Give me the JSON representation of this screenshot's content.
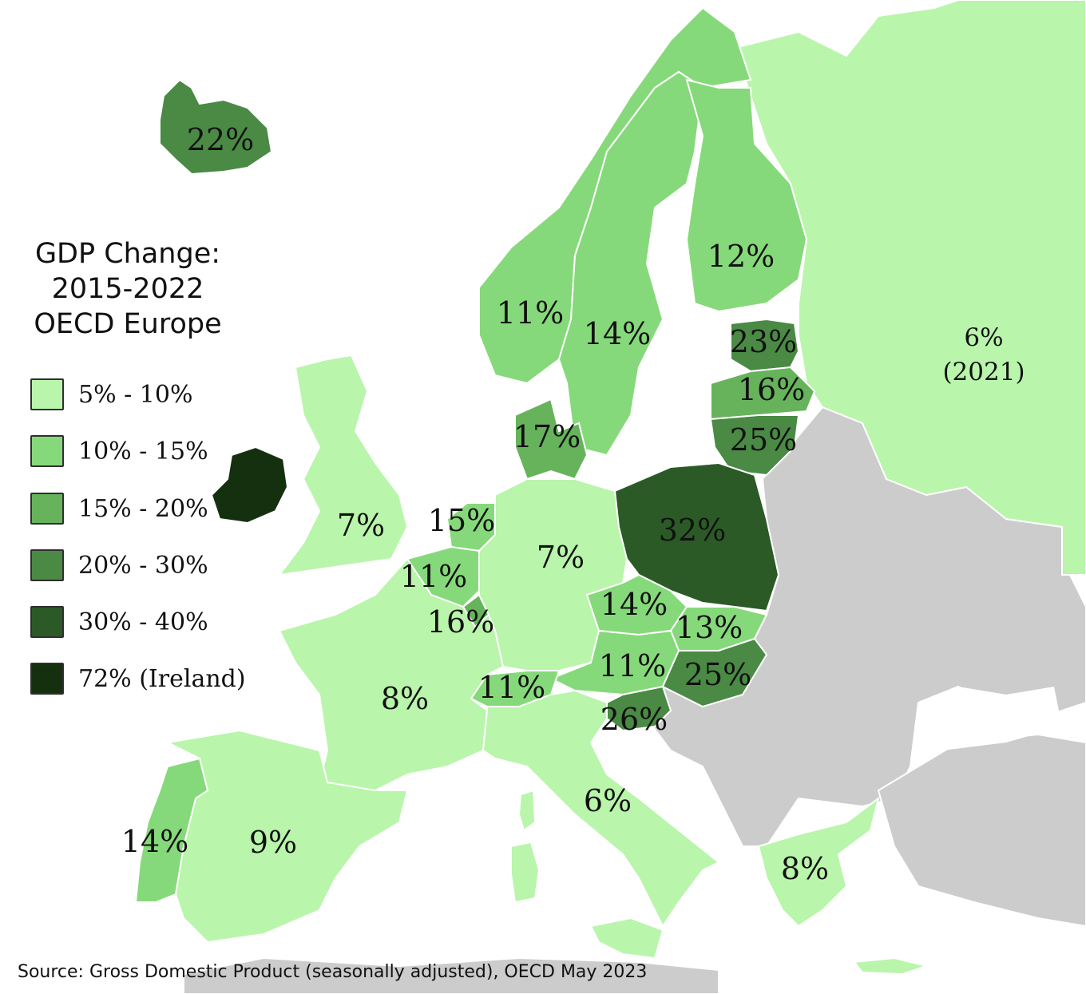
{
  "title": {
    "line1": "GDP Change:",
    "line2": "2015-2022",
    "line3": "OECD Europe"
  },
  "legend": [
    {
      "label": "5% - 10%",
      "color": "#b9f5ab"
    },
    {
      "label": "10% - 15%",
      "color": "#86d97a"
    },
    {
      "label": "15% - 20%",
      "color": "#66b35c"
    },
    {
      "label": "20% - 30%",
      "color": "#4a8a44"
    },
    {
      "label": "30% - 40%",
      "color": "#2b5a27"
    },
    {
      "label": "72% (Ireland)",
      "color": "#14300f"
    }
  ],
  "no_data_color": "#cccccc",
  "sea_color": "#ffffff",
  "countries": [
    {
      "key": "iceland",
      "value": "22%",
      "color": "#4a8a44"
    },
    {
      "key": "norway",
      "value": "11%",
      "color": "#86d97a"
    },
    {
      "key": "sweden",
      "value": "14%",
      "color": "#86d97a"
    },
    {
      "key": "finland",
      "value": "12%",
      "color": "#86d97a"
    },
    {
      "key": "estonia",
      "value": "23%",
      "color": "#4a8a44"
    },
    {
      "key": "latvia",
      "value": "16%",
      "color": "#66b35c"
    },
    {
      "key": "lithuania",
      "value": "25%",
      "color": "#4a8a44"
    },
    {
      "key": "russia",
      "value": "6%",
      "note": "(2021)",
      "color": "#b9f5ab"
    },
    {
      "key": "denmark",
      "value": "17%",
      "color": "#66b35c"
    },
    {
      "key": "ireland",
      "value": "",
      "color": "#14300f"
    },
    {
      "key": "uk",
      "value": "7%",
      "color": "#b9f5ab"
    },
    {
      "key": "netherlands",
      "value": "15%",
      "color": "#86d97a"
    },
    {
      "key": "belgium",
      "value": "11%",
      "color": "#86d97a"
    },
    {
      "key": "luxembourg",
      "value": "16%",
      "color": "#66b35c"
    },
    {
      "key": "germany",
      "value": "7%",
      "color": "#b9f5ab"
    },
    {
      "key": "poland",
      "value": "32%",
      "color": "#2b5a27"
    },
    {
      "key": "czechia",
      "value": "14%",
      "color": "#86d97a"
    },
    {
      "key": "slovakia",
      "value": "13%",
      "color": "#86d97a"
    },
    {
      "key": "austria",
      "value": "11%",
      "color": "#86d97a"
    },
    {
      "key": "hungary",
      "value": "25%",
      "color": "#4a8a44"
    },
    {
      "key": "slovenia",
      "value": "26%",
      "color": "#4a8a44"
    },
    {
      "key": "switzerland",
      "value": "11%",
      "color": "#86d97a"
    },
    {
      "key": "france",
      "value": "8%",
      "color": "#b9f5ab"
    },
    {
      "key": "italy",
      "value": "6%",
      "color": "#b9f5ab"
    },
    {
      "key": "spain",
      "value": "9%",
      "color": "#b9f5ab"
    },
    {
      "key": "portugal",
      "value": "14%",
      "color": "#86d97a"
    },
    {
      "key": "greece",
      "value": "8%",
      "color": "#b9f5ab"
    }
  ],
  "source": "Source: Gross Domestic Product (seasonally adjusted), OECD May 2023"
}
